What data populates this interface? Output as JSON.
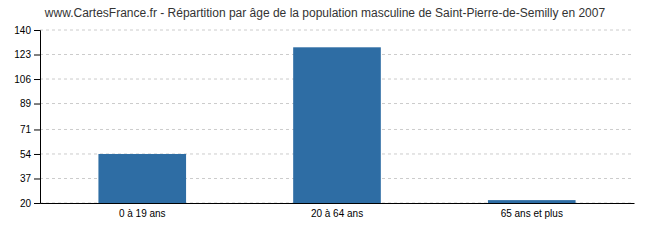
{
  "chart_data": {
    "type": "bar",
    "title": "www.CartesFrance.fr - Répartition par âge de la population masculine de Saint-Pierre-de-Semilly en 2007",
    "categories": [
      "0 à 19 ans",
      "20 à 64 ans",
      "65 ans et plus"
    ],
    "values": [
      54,
      128,
      22
    ],
    "color": "#2e6da4",
    "ylim": [
      20,
      140
    ],
    "yticks": [
      20,
      37,
      54,
      71,
      89,
      106,
      123,
      140
    ],
    "grid": true
  }
}
